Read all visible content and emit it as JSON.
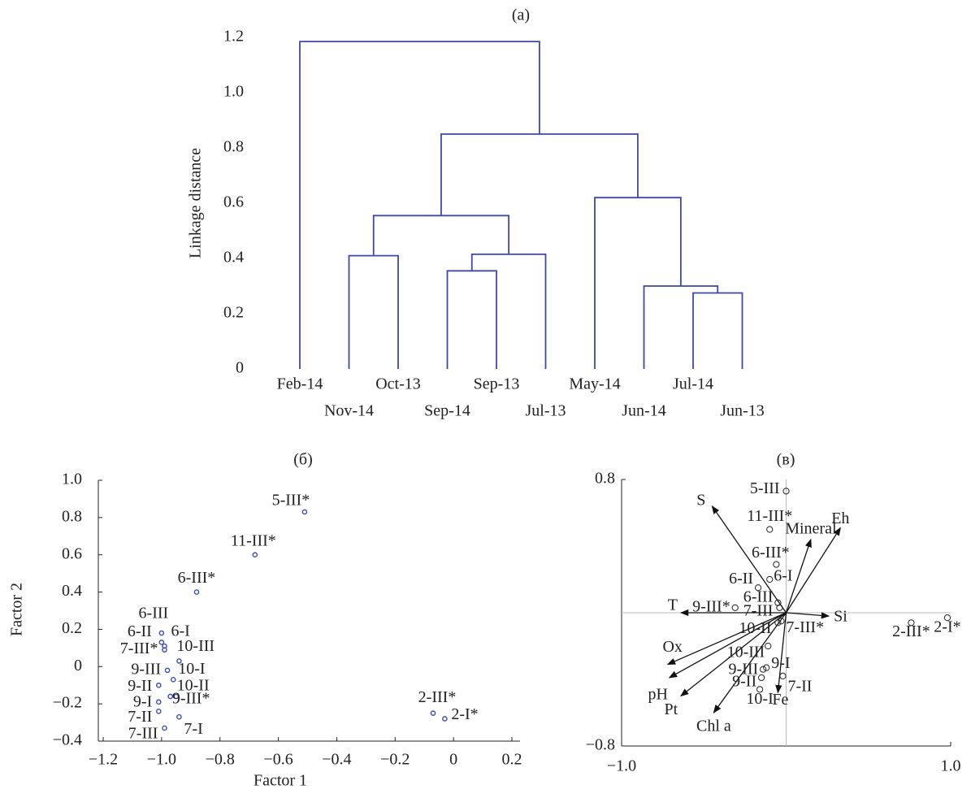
{
  "chart_data": [
    {
      "type": "dendrogram",
      "title": "(a)",
      "y_label": "Linkage distance",
      "color": "#3f48a8",
      "categories": [
        "Feb-14",
        "Nov-14",
        "Oct-13",
        "Sep-14",
        "Sep-13",
        "Jul-13",
        "May-14",
        "Jun-14",
        "Jul-14",
        "Jun-13"
      ],
      "merges": [
        {
          "children": [
            3,
            4
          ],
          "height": 0.355
        },
        {
          "children": [
            8,
            9
          ],
          "height": 0.275
        },
        {
          "children": [
            7,
            11
          ],
          "height": 0.3
        },
        {
          "children": [
            1,
            2
          ],
          "height": 0.41
        },
        {
          "children": [
            10,
            5
          ],
          "height": 0.415
        },
        {
          "children": [
            13,
            14
          ],
          "height": 0.555
        },
        {
          "children": [
            6,
            12
          ],
          "height": 0.62
        },
        {
          "children": [
            15,
            16
          ],
          "height": 0.85
        },
        {
          "children": [
            0,
            17
          ],
          "height": 1.185
        }
      ],
      "ylim": [
        0,
        1.2
      ],
      "yticks": [
        0,
        0.2,
        0.4,
        0.6,
        0.8,
        {
          "value": 1,
          "label": "1.0"
        },
        1.2
      ]
    },
    {
      "type": "scatter",
      "title": "(б)",
      "x_label": "Factor 1",
      "y_label": "Factor 2",
      "color": "#3a4bb5",
      "labels": [
        "5-III*",
        "11-III*",
        "6-III*",
        "6-III",
        "6-II",
        "6-I",
        "7-III*",
        "10-III",
        "9-III",
        "10-I",
        "9-II",
        "10-II",
        "9-I",
        "9-III*",
        "7-II",
        "7-I",
        "7-III",
        "2-III*",
        "2-I*"
      ],
      "x": [
        -0.51,
        -0.68,
        -0.88,
        -1.0,
        -1.0,
        -0.99,
        -0.99,
        -0.94,
        -0.98,
        -0.96,
        -1.01,
        -0.97,
        -1.01,
        -0.95,
        -1.01,
        -0.94,
        -0.99,
        -0.07,
        -0.03
      ],
      "values": [
        0.83,
        0.6,
        0.4,
        0.18,
        0.13,
        0.11,
        0.09,
        0.03,
        -0.02,
        -0.07,
        -0.1,
        -0.16,
        -0.19,
        -0.16,
        -0.24,
        -0.27,
        -0.33,
        -0.25,
        -0.28
      ],
      "xlim": [
        -1.2,
        0.2
      ],
      "ylim": [
        -0.4,
        1.0
      ],
      "xticks": [
        {
          "value": -1.2,
          "label": "−1.2"
        },
        {
          "value": -1.0,
          "label": "−1.0"
        },
        {
          "value": -0.8,
          "label": "−0.8"
        },
        {
          "value": -0.6,
          "label": "−0.6"
        },
        {
          "value": -0.4,
          "label": "−0.4"
        },
        {
          "value": -0.2,
          "label": "−0.2"
        },
        0,
        0.2
      ],
      "yticks": [
        {
          "value": -0.4,
          "label": "−0.4"
        },
        {
          "value": -0.2,
          "label": "−0.2"
        },
        0,
        0.2,
        0.4,
        0.6,
        0.8,
        {
          "value": 1,
          "label": "1.0"
        }
      ]
    },
    {
      "type": "biplot",
      "title": "(в)",
      "vectors": {
        "names": [
          "S",
          "Mineral",
          "Eh",
          "T",
          "Si",
          "Ox",
          "pH",
          "Pt",
          "Chl a",
          "Fe"
        ],
        "x": [
          -0.45,
          0.15,
          0.33,
          -0.64,
          0.26,
          -0.72,
          -0.71,
          -0.64,
          -0.44,
          -0.05
        ],
        "y": [
          0.64,
          0.44,
          0.51,
          0,
          -0.02,
          -0.31,
          -0.39,
          -0.5,
          -0.6,
          -0.48
        ]
      },
      "points": {
        "names": [
          "5-III",
          "11-III*",
          "6-III*",
          "6-I",
          "6-II",
          "6-III",
          "7-III",
          "9-III*",
          "10-II",
          "7-III*",
          "10-III",
          "9-III",
          "9-I",
          "9-II",
          "7-II",
          "10-I",
          "2-III*",
          "2-I*"
        ],
        "x": [
          0,
          -0.1,
          -0.06,
          -0.1,
          -0.17,
          -0.05,
          -0.04,
          -0.31,
          -0.05,
          -0.03,
          -0.11,
          -0.14,
          -0.12,
          -0.15,
          -0.02,
          -0.16,
          0.76,
          0.98
        ],
        "y": [
          0.73,
          0.5,
          0.29,
          0.2,
          0.15,
          0.06,
          0.03,
          0.03,
          -0.06,
          -0.05,
          -0.2,
          -0.34,
          -0.33,
          -0.39,
          -0.38,
          -0.46,
          -0.06,
          -0.03
        ]
      },
      "xlim": [
        -1,
        1
      ],
      "ylim": [
        -0.8,
        0.8
      ],
      "xticks": [
        {
          "value": -1,
          "label": "−1.0"
        },
        {
          "value": 1,
          "label": "1.0"
        }
      ],
      "yticks": [
        {
          "value": -0.8,
          "label": "−0.8"
        },
        0.8
      ]
    }
  ]
}
